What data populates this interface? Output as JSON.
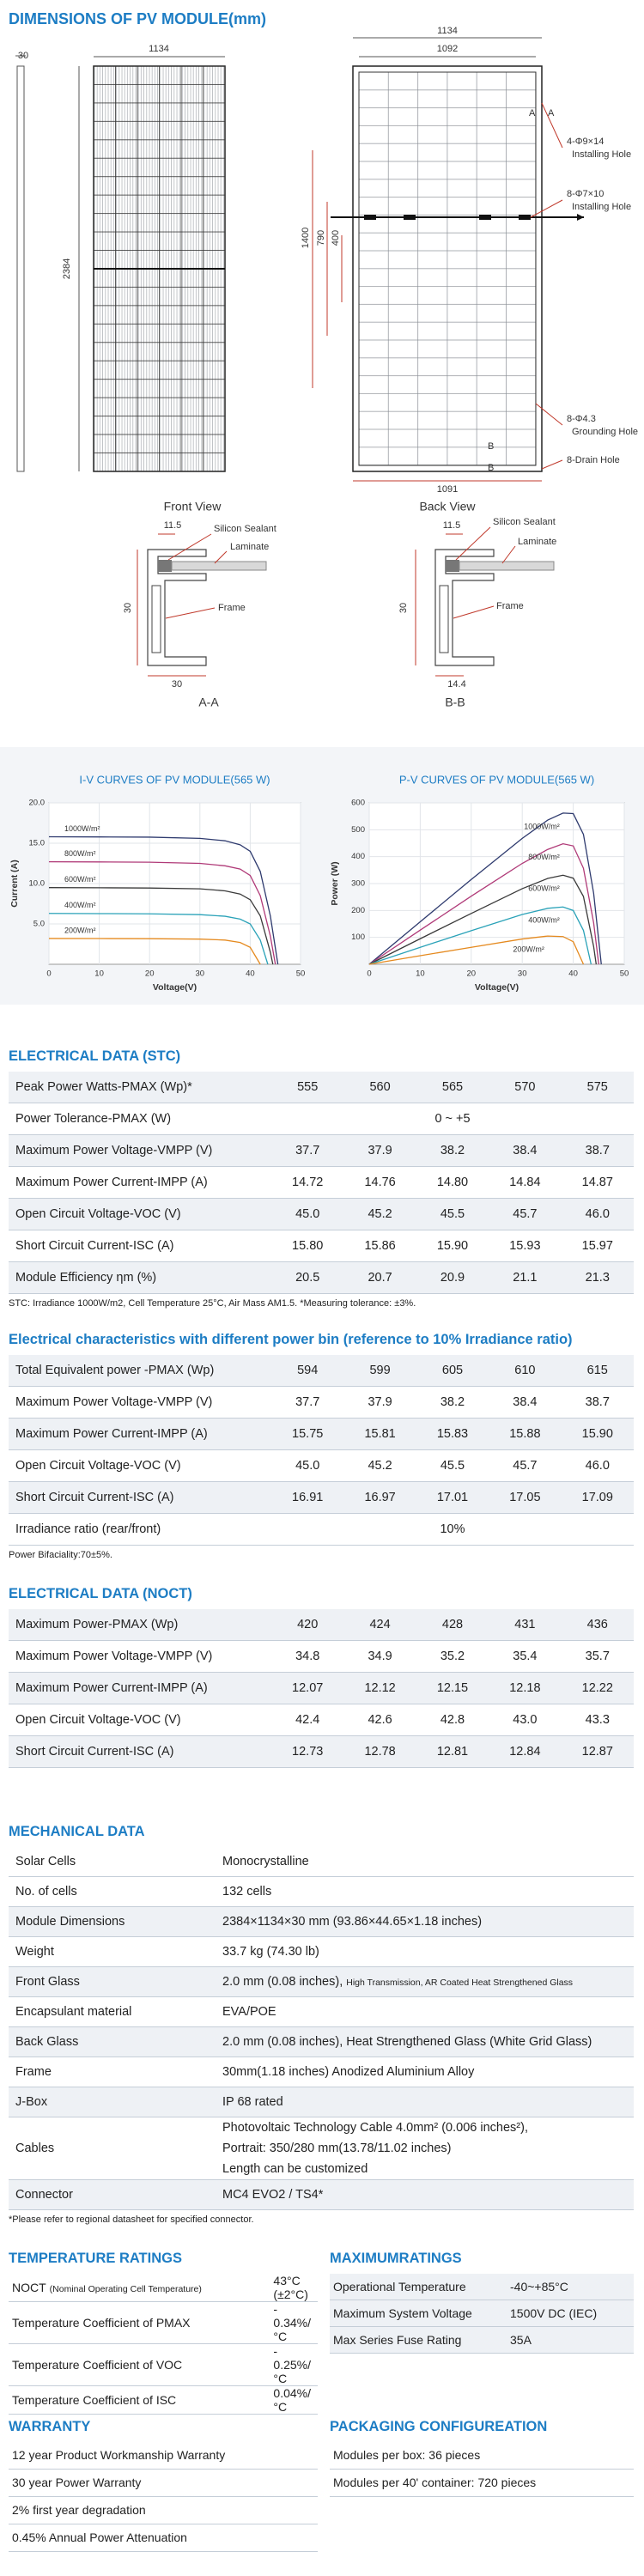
{
  "dimensions": {
    "title": "DIMENSIONS OF PV MODULE(mm)",
    "side_thickness": "30",
    "front_view": {
      "caption": "Front View",
      "width": "1134",
      "height": "2384"
    },
    "back_view": {
      "caption": "Back View",
      "width": "1134",
      "inner_width": "1092",
      "bottom_width": "1091",
      "spacing": [
        "1400",
        "790",
        "400"
      ],
      "section_marks": [
        "A",
        "A",
        "B",
        "B"
      ],
      "notes": [
        [
          "4-Φ9×14",
          "Installing Hole"
        ],
        [
          "8-Φ7×10",
          "Installing Hole"
        ],
        [
          "8-Φ4.3",
          "Grounding Hole"
        ],
        [
          "8-Drain Hole"
        ]
      ]
    },
    "section_a": {
      "caption": "A-A",
      "top": "11.5",
      "height": "30",
      "width": "30",
      "parts": [
        "Silicon Sealant",
        "Laminate",
        "Frame"
      ]
    },
    "section_b": {
      "caption": "B-B",
      "top": "11.5",
      "height": "30",
      "width": "14.4",
      "parts": [
        "Silicon Sealant",
        "Laminate",
        "Frame"
      ]
    }
  },
  "chart_data": [
    {
      "type": "line",
      "title": "I-V CURVES OF PV MODULE(565 W)",
      "x_label": "Voltage(V)",
      "y_label": "Current (A)",
      "xlim": [
        0,
        50
      ],
      "xticks": [
        0,
        10,
        20,
        30,
        40,
        50
      ],
      "ylim": [
        0,
        20
      ],
      "yticks": [
        {
          "value": 5,
          "label": "5.0"
        },
        {
          "value": 10,
          "label": "10.0"
        },
        {
          "value": 15,
          "label": "15.0"
        },
        {
          "value": 20,
          "label": "20.0"
        }
      ],
      "grid": true,
      "series": [
        {
          "name": "1000W/m²",
          "color": "#2e3a6e",
          "x": [
            0,
            10,
            20,
            30,
            35,
            38,
            40,
            42,
            44,
            45.5
          ],
          "values": [
            15.8,
            15.78,
            15.75,
            15.6,
            15.3,
            14.8,
            14.0,
            11.5,
            6.0,
            0
          ]
        },
        {
          "name": "800W/m²",
          "color": "#b03a78",
          "x": [
            0,
            10,
            20,
            30,
            35,
            38,
            40,
            42,
            44,
            45
          ],
          "values": [
            12.7,
            12.68,
            12.65,
            12.5,
            12.2,
            11.8,
            11.0,
            8.5,
            3.5,
            0
          ]
        },
        {
          "name": "600W/m²",
          "color": "#3a3a3a",
          "x": [
            0,
            10,
            20,
            30,
            35,
            38,
            40,
            42,
            44,
            44.5
          ],
          "values": [
            9.5,
            9.48,
            9.45,
            9.35,
            9.1,
            8.7,
            8.0,
            6.0,
            1.5,
            0
          ]
        },
        {
          "name": "400W/m²",
          "color": "#2aa2b8",
          "x": [
            0,
            10,
            20,
            30,
            35,
            38,
            40,
            42,
            43.5
          ],
          "values": [
            6.3,
            6.28,
            6.25,
            6.15,
            5.95,
            5.6,
            5.0,
            3.0,
            0
          ]
        },
        {
          "name": "200W/m²",
          "color": "#e58a1f",
          "x": [
            0,
            10,
            20,
            30,
            35,
            38,
            40,
            42
          ],
          "values": [
            3.2,
            3.19,
            3.17,
            3.12,
            3.0,
            2.7,
            2.1,
            0
          ]
        }
      ]
    },
    {
      "type": "line",
      "title": "P-V CURVES OF PV MODULE(565 W)",
      "x_label": "Voltage(V)",
      "y_label": "Power (W)",
      "xlim": [
        0,
        50
      ],
      "xticks": [
        0,
        10,
        20,
        30,
        40,
        50
      ],
      "ylim": [
        0,
        600
      ],
      "yticks": [
        100,
        200,
        300,
        400,
        500,
        600
      ],
      "grid": true,
      "series": [
        {
          "name": "1000W/m²",
          "color": "#2e3a6e",
          "x": [
            0,
            10,
            20,
            30,
            35,
            38,
            40,
            42,
            44,
            45.5
          ],
          "values": [
            0,
            158,
            315,
            468,
            536,
            562,
            560,
            483,
            264,
            0
          ]
        },
        {
          "name": "800W/m²",
          "color": "#b03a78",
          "x": [
            0,
            10,
            20,
            30,
            35,
            38,
            40,
            42,
            44,
            45
          ],
          "values": [
            0,
            127,
            253,
            375,
            427,
            448,
            440,
            357,
            154,
            0
          ]
        },
        {
          "name": "600W/m²",
          "color": "#3a3a3a",
          "x": [
            0,
            10,
            20,
            30,
            35,
            38,
            40,
            42,
            44,
            44.5
          ],
          "values": [
            0,
            95,
            189,
            281,
            319,
            331,
            320,
            252,
            66,
            0
          ]
        },
        {
          "name": "400W/m²",
          "color": "#2aa2b8",
          "x": [
            0,
            10,
            20,
            30,
            35,
            38,
            40,
            42,
            43.5
          ],
          "values": [
            0,
            63,
            125,
            185,
            208,
            213,
            200,
            126,
            0
          ]
        },
        {
          "name": "200W/m²",
          "color": "#e58a1f",
          "x": [
            0,
            10,
            20,
            30,
            35,
            38,
            40,
            42
          ],
          "values": [
            0,
            32,
            63,
            94,
            105,
            103,
            84,
            0
          ]
        }
      ]
    }
  ],
  "electrical_stc": {
    "title": "ELECTRICAL DATA (STC)",
    "rows": [
      {
        "label": "Peak Power Watts-PMAX (Wp)*",
        "values": [
          "555",
          "560",
          "565",
          "570",
          "575"
        ]
      },
      {
        "label": "Power Tolerance-PMAX (W)",
        "span": "0 ~ +5"
      },
      {
        "label": "Maximum Power Voltage-VMPP (V)",
        "values": [
          "37.7",
          "37.9",
          "38.2",
          "38.4",
          "38.7"
        ]
      },
      {
        "label": "Maximum Power Current-IMPP (A)",
        "values": [
          "14.72",
          "14.76",
          "14.80",
          "14.84",
          "14.87"
        ]
      },
      {
        "label": "Open Circuit Voltage-VOC (V)",
        "values": [
          "45.0",
          "45.2",
          "45.5",
          "45.7",
          "46.0"
        ]
      },
      {
        "label": "Short Circuit Current-ISC (A)",
        "values": [
          "15.80",
          "15.86",
          "15.90",
          "15.93",
          "15.97"
        ]
      },
      {
        "label": "Module Efficiency ηm (%)",
        "values": [
          "20.5",
          "20.7",
          "20.9",
          "21.1",
          "21.3"
        ]
      }
    ],
    "note": "STC: Irradiance 1000W/m2, Cell Temperature 25°C, Air Mass AM1.5.   *Measuring tolerance: ±3%."
  },
  "electrical_bifacial": {
    "title": "Electrical characteristics with different power bin (reference to 10%  Irradiance ratio)",
    "rows": [
      {
        "label": "Total Equivalent power -PMAX (Wp)",
        "values": [
          "594",
          "599",
          "605",
          "610",
          "615"
        ]
      },
      {
        "label": "Maximum Power Voltage-VMPP (V)",
        "values": [
          "37.7",
          "37.9",
          "38.2",
          "38.4",
          "38.7"
        ]
      },
      {
        "label": "Maximum Power Current-IMPP (A)",
        "values": [
          "15.75",
          "15.81",
          "15.83",
          "15.88",
          "15.90"
        ]
      },
      {
        "label": "Open Circuit Voltage-VOC (V)",
        "values": [
          "45.0",
          "45.2",
          "45.5",
          "45.7",
          "46.0"
        ]
      },
      {
        "label": "Short Circuit Current-ISC (A)",
        "values": [
          "16.91",
          "16.97",
          "17.01",
          "17.05",
          "17.09"
        ]
      },
      {
        "label": "Irradiance ratio (rear/front)",
        "span": "10%"
      }
    ],
    "note": "Power Bifaciality:70±5%."
  },
  "electrical_noct": {
    "title": "ELECTRICAL DATA (NOCT)",
    "rows": [
      {
        "label": "Maximum Power-PMAX (Wp)",
        "values": [
          "420",
          "424",
          "428",
          "431",
          "436"
        ]
      },
      {
        "label": "Maximum Power Voltage-VMPP (V)",
        "values": [
          "34.8",
          "34.9",
          "35.2",
          "35.4",
          "35.7"
        ]
      },
      {
        "label": "Maximum Power Current-IMPP (A)",
        "values": [
          "12.07",
          "12.12",
          "12.15",
          "12.18",
          "12.22"
        ]
      },
      {
        "label": "Open Circuit Voltage-VOC (V)",
        "values": [
          "42.4",
          "42.6",
          "42.8",
          "43.0",
          "43.3"
        ]
      },
      {
        "label": "Short Circuit Current-ISC (A)",
        "values": [
          "12.73",
          "12.78",
          "12.81",
          "12.84",
          "12.87"
        ]
      }
    ]
  },
  "mechanical": {
    "title": "MECHANICAL DATA",
    "rows": [
      {
        "label": "Solar Cells",
        "value": "Monocrystalline"
      },
      {
        "label": "No. of cells",
        "value": "132 cells"
      },
      {
        "label": "Module Dimensions",
        "value": "2384×1134×30 mm (93.86×44.65×1.18 inches)"
      },
      {
        "label": "Weight",
        "value": "33.7 kg (74.30 lb)"
      },
      {
        "label": "Front Glass",
        "value": "2.0 mm (0.08 inches),",
        "note": "High Transmission, AR Coated Heat Strengthened Glass"
      },
      {
        "label": "Encapsulant material",
        "value": "EVA/POE"
      },
      {
        "label": "Back Glass",
        "value": "2.0 mm (0.08 inches), Heat Strengthened Glass (White Grid Glass)"
      },
      {
        "label": "Frame",
        "value": "30mm(1.18 inches)  Anodized  Aluminium Alloy"
      },
      {
        "label": "J-Box",
        "value": "IP 68 rated"
      },
      {
        "label": "Cables",
        "value": [
          "Photovoltaic Technology Cable 4.0mm² (0.006 inches²),",
          "Portrait: 350/280 mm(13.78/11.02 inches)",
          "Length can be customized"
        ]
      },
      {
        "label": "Connector",
        "value": "MC4 EVO2 / TS4*"
      }
    ],
    "note": "*Please refer to regional datasheet for specified connector."
  },
  "temperature": {
    "title": "TEMPERATURE RATINGS",
    "rows": [
      {
        "label": "NOCT",
        "label_note": "(Nominal Operating Cell Temperature)",
        "value": "43°C (±2°C)"
      },
      {
        "label": "Temperature Coefficient of PMAX",
        "value": "- 0.34%/°C"
      },
      {
        "label": "Temperature Coefficient of VOC",
        "value": "- 0.25%/°C"
      },
      {
        "label": "Temperature Coefficient of ISC",
        "value": "0.04%/°C"
      }
    ]
  },
  "maximum_ratings": {
    "title": "MAXIMUMRATINGS",
    "rows": [
      {
        "label": "Operational Temperature",
        "value": "-40~+85°C"
      },
      {
        "label": "Maximum System Voltage",
        "value": "1500V DC (IEC)"
      },
      {
        "label": "Max Series Fuse Rating",
        "value": "35A"
      }
    ]
  },
  "warranty": {
    "title": "WARRANTY",
    "items": [
      "12 year Product Workmanship Warranty",
      "30 year Power Warranty",
      "2% first year degradation",
      "0.45% Annual Power Attenuation"
    ]
  },
  "packaging": {
    "title": "PACKAGING CONFIGUREATION",
    "items": [
      "Modules per box: 36 pieces",
      "Modules per 40' container: 720 pieces"
    ]
  }
}
